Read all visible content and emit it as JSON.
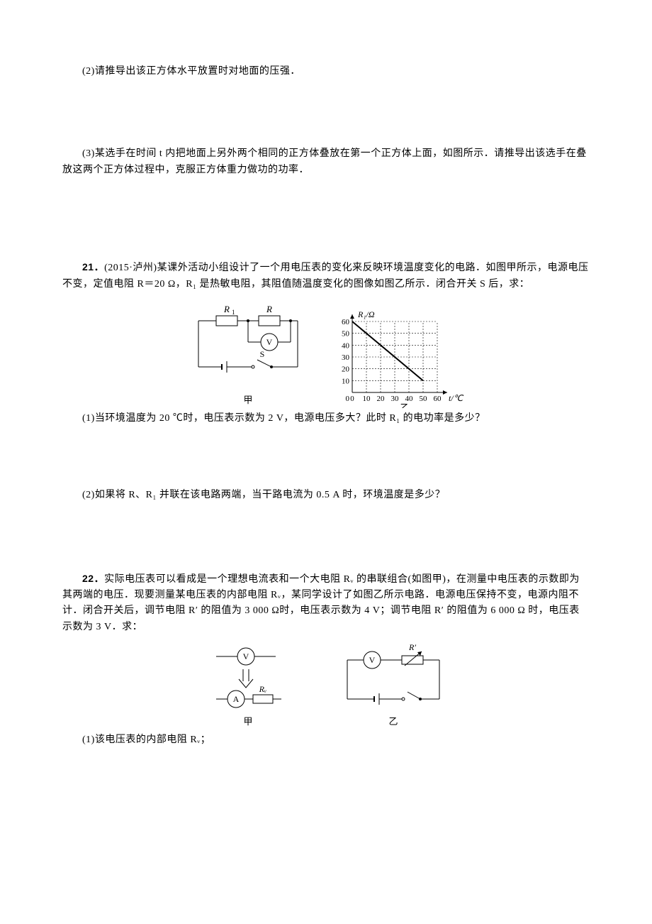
{
  "q_pre": {
    "p2": "(2)请推导出该正方体水平放置时对地面的压强．",
    "p3": "(3)某选手在时间 t 内把地面上另外两个相同的正方体叠放在第一个正方体上面，如图所示．请推导出该选手在叠放这两个正方体过程中，克服正方体重力做功的功率．"
  },
  "q21": {
    "bold": "21．",
    "lead": "(2015·泸州)某课外活动小组设计了一个用电压表的变化来反映环境温度变化的电路．如图甲所示，电源电压不变，定值电阻 R＝20 Ω，R₁ 是热敏电阻，其阻值随温度变化的图像如图乙所示．闭合开关 S 后，求：",
    "sub1": "(1)当环境温度为 20 ℃时，电压表示数为 2 V，电源电压多大？此时 R₁ 的电功率是多少？",
    "sub2": "(2)如果将 R、R₁ 并联在该电路两端，当干路电流为 0.5 A 时，环境温度是多少？",
    "circuit": {
      "labels": {
        "R1": "R₁",
        "R": "R",
        "V": "V",
        "S": "S",
        "caption": "甲"
      },
      "stroke": "#000000",
      "fill_bg": "#ffffff"
    },
    "graph": {
      "caption": "乙",
      "xlabel": "t/℃",
      "ylabel": "R₁/Ω",
      "x_ticks": [
        0,
        10,
        20,
        30,
        40,
        50,
        60
      ],
      "y_ticks": [
        10,
        20,
        30,
        40,
        50,
        60
      ],
      "xlim": [
        0,
        60
      ],
      "ylim": [
        0,
        60
      ],
      "line_width": "2",
      "grid_color": "#000000",
      "grid_dash": "2,2",
      "axis_color": "#000000",
      "data_points": [
        [
          0,
          60
        ],
        [
          50,
          10
        ]
      ],
      "font_size": 11
    }
  },
  "q22": {
    "bold": "22．",
    "lead": "实际电压表可以看成是一个理想电流表和一个大电阻 Rᵥ 的串联组合(如图甲)，在测量中电压表的示数即为其两端的电压．现要测量某电压表的内部电阻 Rᵥ，某同学设计了如图乙所示电路．电源电压保持不变，电源内阻不计．闭合开关后，调节电阻 R′ 的阻值为 3 000 Ω时，电压表示数为 4 V；调节电阻 R′ 的阻值为 6 000 Ω 时，电压表示数为 3 V．求：",
    "sub1": "(1)该电压表的内部电阻 Rᵥ；",
    "fig_a": {
      "labels": {
        "V": "V",
        "A": "A",
        "Rv": "Rᵥ",
        "caption": "甲"
      },
      "stroke": "#000000"
    },
    "fig_b": {
      "labels": {
        "V": "V",
        "Rp": "R′",
        "caption": "乙"
      },
      "stroke": "#000000"
    }
  },
  "colors": {
    "text": "#000000",
    "page_bg": "#ffffff"
  },
  "typography": {
    "body_size_pt": 10.5,
    "family": "SimSun"
  }
}
